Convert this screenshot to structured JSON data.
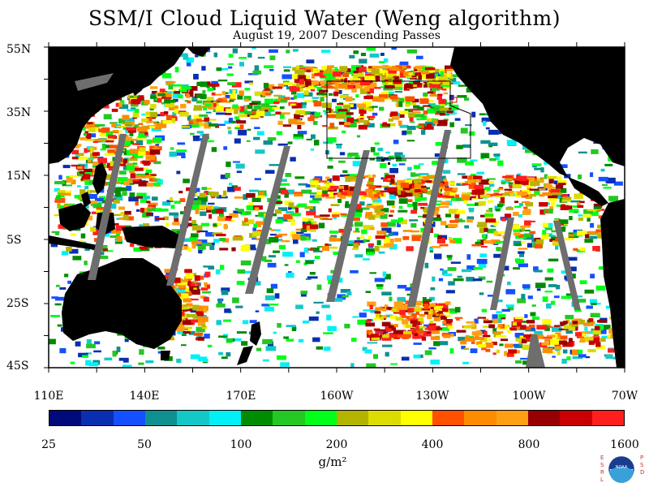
{
  "title": "SSM/I Cloud Liquid Water (Weng algorithm)",
  "subtitle": "August 19, 2007  Descending Passes",
  "lat_labels": [
    "55N",
    "35N",
    "15N",
    "5S",
    "25S",
    "45S"
  ],
  "lon_labels": [
    "110E",
    "140E",
    "170E",
    "160W",
    "130W",
    "100W",
    "70W"
  ],
  "colorbar": {
    "colors": [
      "#000a7a",
      "#0a2eb0",
      "#1450ff",
      "#0f9090",
      "#15c8c8",
      "#00f0f5",
      "#008c00",
      "#23c823",
      "#00ff19",
      "#b4b400",
      "#dcdc00",
      "#ffff00",
      "#ff5000",
      "#ff8c00",
      "#ffa014",
      "#960000",
      "#c80000",
      "#ff1e1e"
    ],
    "tick_labels": [
      "25",
      "50",
      "100",
      "200",
      "400",
      "800",
      "1600"
    ],
    "units": "g/m²"
  },
  "map_colors": {
    "land": "#000000",
    "no_data": "#ffffff",
    "swath_gap": "#6e6e6e",
    "frame": "#000000"
  },
  "logo": {
    "left_letters": "E S R L",
    "right_letters": "P S D",
    "center_text": "NOAA"
  }
}
